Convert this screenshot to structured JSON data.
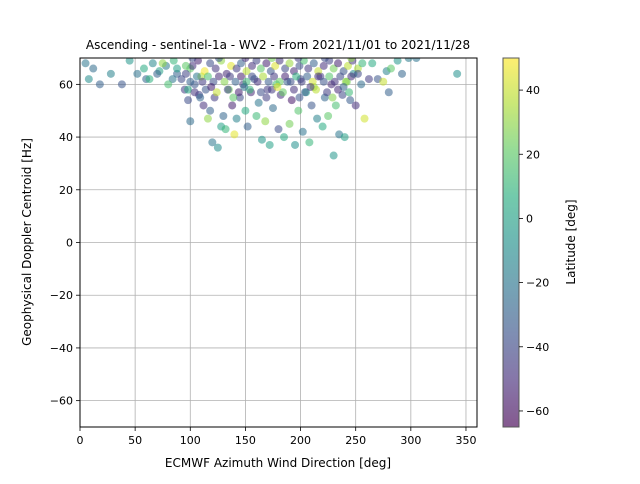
{
  "chart_data": {
    "type": "scatter",
    "title": "Ascending - sentinel-1a - WV2 - From 2021/11/01 to 2021/11/28",
    "xlabel": "ECMWF Azimuth Wind Direction [deg]",
    "ylabel": "Geophysical Doppler Centroid [Hz]",
    "xlim": [
      0,
      360
    ],
    "ylim": [
      -70,
      70
    ],
    "xticks": [
      0,
      50,
      100,
      150,
      200,
      250,
      300,
      350
    ],
    "yticks": [
      -60,
      -40,
      -20,
      0,
      20,
      40,
      60
    ],
    "grid": true,
    "colorbar": {
      "label": "Latitude [deg]",
      "range": [
        -65,
        50
      ],
      "ticks": [
        -60,
        -40,
        -20,
        0,
        20,
        40
      ],
      "colormap": "viridis"
    },
    "points": [
      [
        5,
        68,
        -20
      ],
      [
        12,
        66,
        -25
      ],
      [
        8,
        62,
        -10
      ],
      [
        18,
        60,
        -30
      ],
      [
        28,
        64,
        -15
      ],
      [
        38,
        60,
        -35
      ],
      [
        45,
        69,
        -5
      ],
      [
        52,
        64,
        -22
      ],
      [
        58,
        66,
        5
      ],
      [
        60,
        62,
        -28
      ],
      [
        66,
        68,
        -12
      ],
      [
        72,
        65,
        0
      ],
      [
        78,
        67,
        -18
      ],
      [
        85,
        69,
        10
      ],
      [
        88,
        64,
        -30
      ],
      [
        92,
        62,
        -40
      ],
      [
        95,
        58,
        -45
      ],
      [
        98,
        54,
        -38
      ],
      [
        100,
        46,
        -25
      ],
      [
        100,
        66,
        20
      ],
      [
        104,
        60,
        -35
      ],
      [
        108,
        56,
        -42
      ],
      [
        110,
        63,
        35
      ],
      [
        112,
        52,
        -50
      ],
      [
        116,
        47,
        30
      ],
      [
        118,
        50,
        -30
      ],
      [
        120,
        38,
        -20
      ],
      [
        122,
        55,
        -45
      ],
      [
        125,
        36,
        -10
      ],
      [
        128,
        44,
        0
      ],
      [
        130,
        48,
        -28
      ],
      [
        132,
        43,
        10
      ],
      [
        135,
        58,
        25
      ],
      [
        138,
        52,
        -55
      ],
      [
        140,
        41,
        45
      ],
      [
        142,
        47,
        -15
      ],
      [
        145,
        55,
        -40
      ],
      [
        148,
        60,
        -48
      ],
      [
        150,
        50,
        5
      ],
      [
        152,
        44,
        -30
      ],
      [
        155,
        57,
        -52
      ],
      [
        158,
        62,
        -35
      ],
      [
        160,
        48,
        12
      ],
      [
        162,
        53,
        -20
      ],
      [
        165,
        39,
        -5
      ],
      [
        168,
        46,
        30
      ],
      [
        170,
        58,
        -45
      ],
      [
        172,
        37,
        0
      ],
      [
        175,
        51,
        -25
      ],
      [
        178,
        60,
        15
      ],
      [
        180,
        43,
        -38
      ],
      [
        182,
        56,
        -50
      ],
      [
        185,
        40,
        5
      ],
      [
        188,
        61,
        -30
      ],
      [
        190,
        45,
        25
      ],
      [
        192,
        54,
        -58
      ],
      [
        195,
        37,
        -8
      ],
      [
        198,
        50,
        18
      ],
      [
        200,
        62,
        -40
      ],
      [
        202,
        42,
        -22
      ],
      [
        205,
        57,
        0
      ],
      [
        208,
        38,
        10
      ],
      [
        210,
        52,
        -35
      ],
      [
        212,
        59,
        30
      ],
      [
        215,
        47,
        -15
      ],
      [
        218,
        63,
        -45
      ],
      [
        220,
        44,
        5
      ],
      [
        222,
        55,
        -28
      ],
      [
        225,
        48,
        20
      ],
      [
        228,
        60,
        -52
      ],
      [
        230,
        33,
        -5
      ],
      [
        232,
        52,
        15
      ],
      [
        235,
        41,
        -20
      ],
      [
        238,
        56,
        -40
      ],
      [
        240,
        40,
        0
      ],
      [
        242,
        61,
        25
      ],
      [
        245,
        54,
        -32
      ],
      [
        248,
        64,
        -10
      ],
      [
        250,
        52,
        -50
      ],
      [
        252,
        66,
        35
      ],
      [
        255,
        60,
        -25
      ],
      [
        258,
        47,
        42
      ],
      [
        262,
        62,
        -45
      ],
      [
        265,
        68,
        5
      ],
      [
        270,
        62,
        -35
      ],
      [
        275,
        61,
        40
      ],
      [
        278,
        65,
        -15
      ],
      [
        280,
        57,
        -30
      ],
      [
        282,
        66,
        20
      ],
      [
        288,
        69,
        -5
      ],
      [
        292,
        64,
        -28
      ],
      [
        298,
        70,
        -18
      ],
      [
        305,
        70,
        -22
      ],
      [
        342,
        64,
        -8
      ],
      [
        96,
        64,
        -42
      ],
      [
        102,
        67,
        -50
      ],
      [
        107,
        69,
        -55
      ],
      [
        113,
        65,
        48
      ],
      [
        118,
        68,
        -38
      ],
      [
        123,
        66,
        -48
      ],
      [
        128,
        69,
        30
      ],
      [
        133,
        64,
        -52
      ],
      [
        137,
        67,
        45
      ],
      [
        142,
        66,
        -45
      ],
      [
        146,
        68,
        -30
      ],
      [
        151,
        65,
        38
      ],
      [
        156,
        67,
        -50
      ],
      [
        160,
        69,
        -42
      ],
      [
        164,
        66,
        20
      ],
      [
        169,
        68,
        -55
      ],
      [
        173,
        65,
        -35
      ],
      [
        177,
        67,
        44
      ],
      [
        181,
        69,
        -48
      ],
      [
        186,
        66,
        -40
      ],
      [
        190,
        68,
        32
      ],
      [
        194,
        65,
        -52
      ],
      [
        199,
        67,
        -38
      ],
      [
        203,
        69,
        15
      ],
      [
        207,
        66,
        -46
      ],
      [
        212,
        68,
        -30
      ],
      [
        216,
        65,
        40
      ],
      [
        221,
        67,
        -50
      ],
      [
        226,
        69,
        -42
      ],
      [
        230,
        66,
        25
      ],
      [
        234,
        68,
        -55
      ],
      [
        239,
        65,
        -36
      ],
      [
        243,
        67,
        38
      ],
      [
        247,
        69,
        -48
      ],
      [
        252,
        64,
        -40
      ],
      [
        256,
        68,
        10
      ],
      [
        100,
        61,
        -30
      ],
      [
        106,
        63,
        -20
      ],
      [
        111,
        61,
        -45
      ],
      [
        116,
        63,
        15
      ],
      [
        121,
        61,
        -38
      ],
      [
        126,
        63,
        -52
      ],
      [
        131,
        61,
        28
      ],
      [
        136,
        63,
        -44
      ],
      [
        141,
        61,
        -30
      ],
      [
        146,
        63,
        -56
      ],
      [
        151,
        61,
        12
      ],
      [
        156,
        63,
        -40
      ],
      [
        161,
        61,
        -50
      ],
      [
        166,
        63,
        35
      ],
      [
        171,
        61,
        -32
      ],
      [
        176,
        63,
        -46
      ],
      [
        181,
        61,
        22
      ],
      [
        186,
        63,
        -54
      ],
      [
        191,
        61,
        -38
      ],
      [
        196,
        63,
        8
      ],
      [
        201,
        61,
        -44
      ],
      [
        206,
        63,
        -30
      ],
      [
        211,
        61,
        42
      ],
      [
        216,
        63,
        -50
      ],
      [
        221,
        61,
        -36
      ],
      [
        226,
        63,
        18
      ],
      [
        231,
        61,
        -48
      ],
      [
        236,
        63,
        -40
      ],
      [
        241,
        61,
        30
      ],
      [
        246,
        63,
        -52
      ],
      [
        98,
        58,
        5
      ],
      [
        104,
        57,
        -48
      ],
      [
        114,
        58,
        -35
      ],
      [
        124,
        57,
        40
      ],
      [
        134,
        58,
        -42
      ],
      [
        144,
        57,
        -55
      ],
      [
        154,
        58,
        10
      ],
      [
        164,
        57,
        -38
      ],
      [
        174,
        58,
        -46
      ],
      [
        184,
        57,
        22
      ],
      [
        194,
        58,
        -50
      ],
      [
        204,
        57,
        -32
      ],
      [
        214,
        58,
        38
      ],
      [
        224,
        57,
        -44
      ],
      [
        234,
        58,
        -52
      ],
      [
        244,
        57,
        12
      ],
      [
        109,
        55,
        -28
      ],
      [
        139,
        55,
        20
      ],
      [
        169,
        55,
        -44
      ],
      [
        199,
        55,
        -36
      ],
      [
        229,
        55,
        28
      ],
      [
        119,
        59,
        -55
      ],
      [
        149,
        59,
        -20
      ],
      [
        179,
        59,
        45
      ],
      [
        209,
        59,
        -48
      ],
      [
        239,
        59,
        -30
      ],
      [
        96,
        67,
        20
      ],
      [
        102,
        70,
        -40
      ],
      [
        126,
        70,
        -35
      ],
      [
        150,
        70,
        -50
      ],
      [
        174,
        70,
        25
      ],
      [
        198,
        70,
        -44
      ],
      [
        222,
        70,
        -38
      ],
      [
        246,
        70,
        30
      ],
      [
        88,
        66,
        0
      ],
      [
        84,
        62,
        -20
      ],
      [
        80,
        60,
        15
      ],
      [
        75,
        68,
        30
      ],
      [
        70,
        64,
        -30
      ],
      [
        63,
        62,
        8
      ]
    ]
  }
}
